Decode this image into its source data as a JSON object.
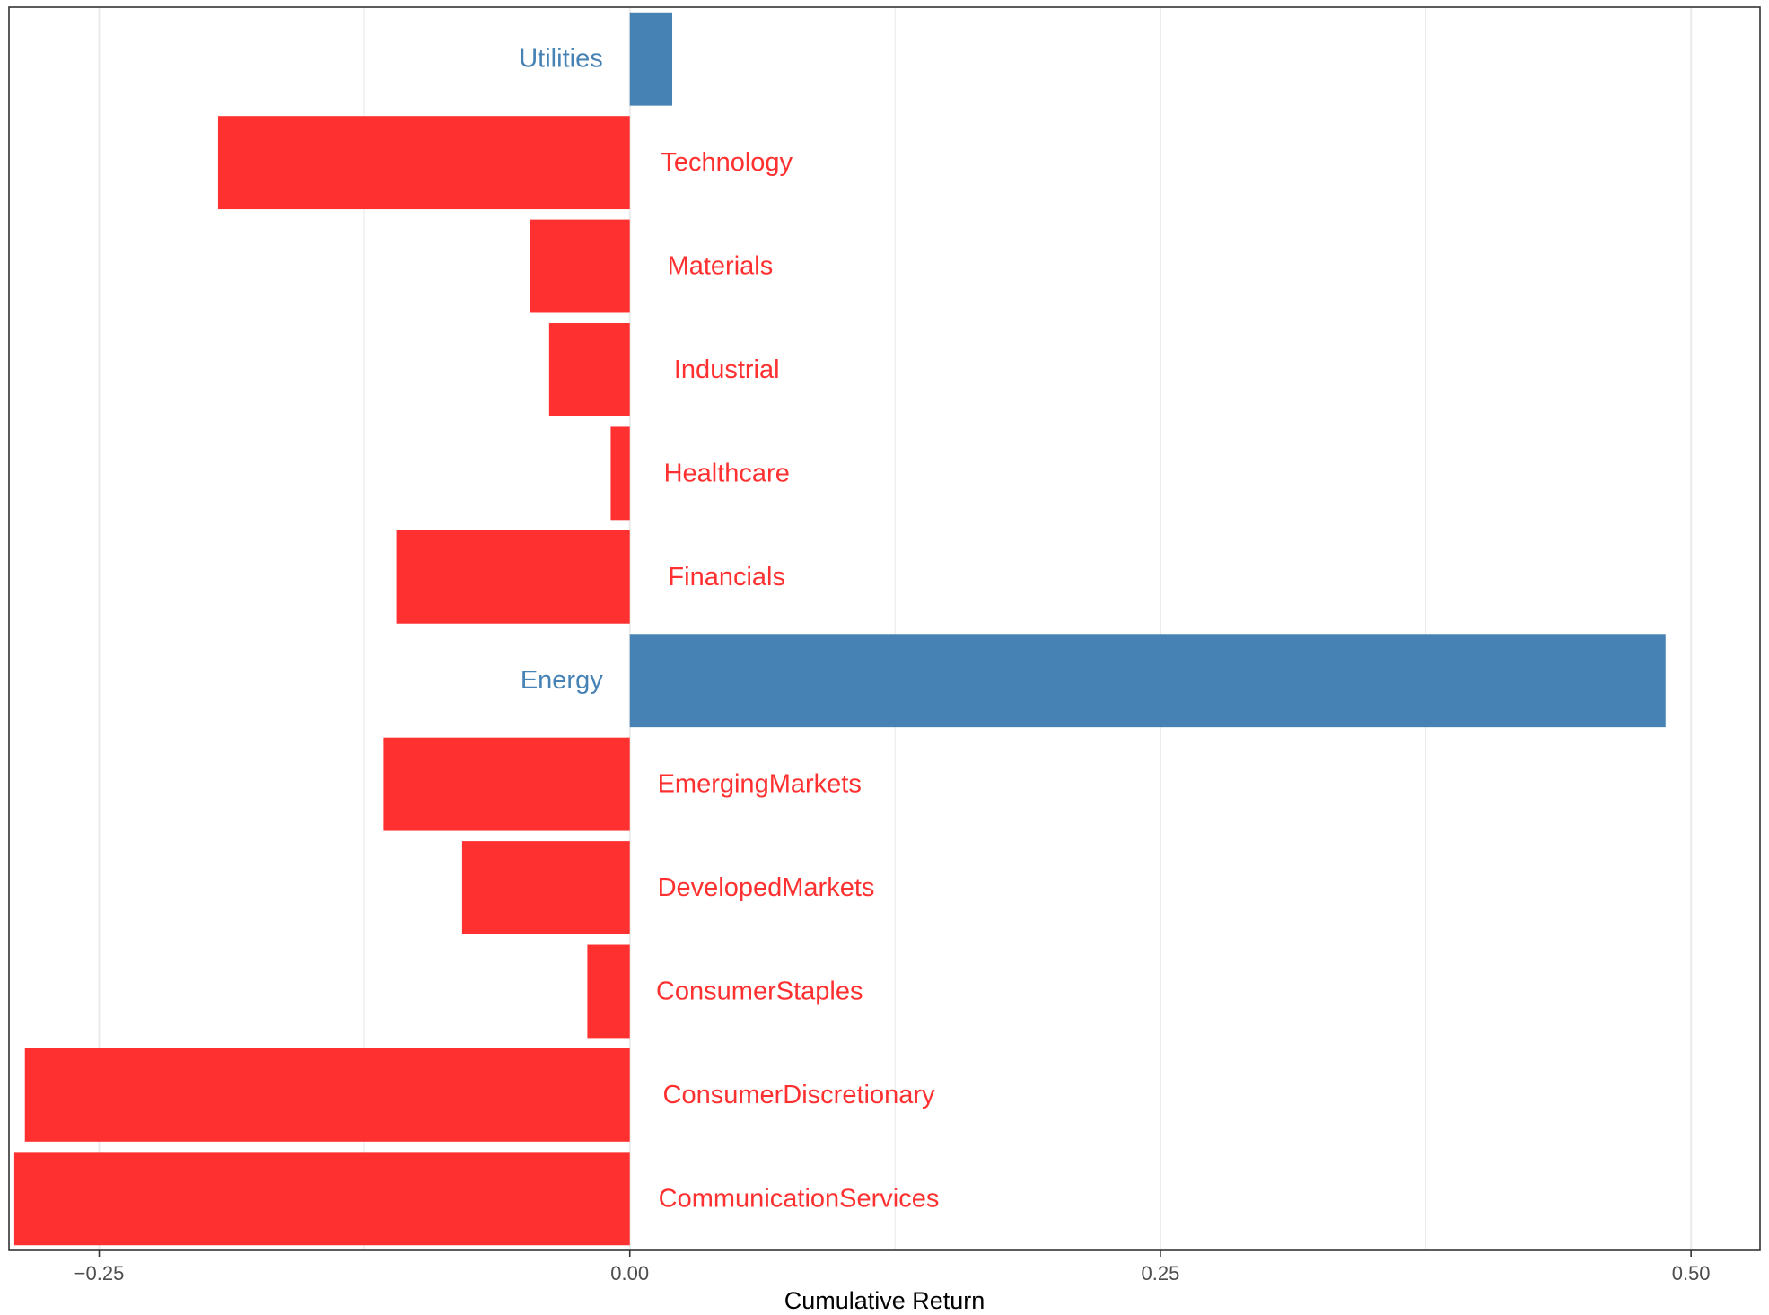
{
  "chart_data": {
    "type": "bar",
    "orientation": "horizontal",
    "xlabel": "Cumulative Return",
    "xlim": [
      -0.2925,
      0.5325
    ],
    "x_ticks": [
      -0.25,
      0.0,
      0.25,
      0.5
    ],
    "x_tick_labels": [
      "−0.25",
      "0.00",
      "0.25",
      "0.50"
    ],
    "minor_gridlines": [
      -0.125,
      0.125,
      0.375
    ],
    "grid": true,
    "legend": "none",
    "colors": {
      "positive": "#4682B4",
      "negative": "#FF3030",
      "grid": "#EBEBEB",
      "panel_border": "#333333"
    },
    "categories": [
      "Utilities",
      "Technology",
      "Materials",
      "Industrial",
      "Healthcare",
      "Financials",
      "Energy",
      "EmergingMarkets",
      "DevelopedMarkets",
      "ConsumerStaples",
      "ConsumerDiscretionary",
      "CommunicationServices"
    ],
    "values": [
      0.02,
      -0.194,
      -0.047,
      -0.038,
      -0.009,
      -0.11,
      0.488,
      -0.116,
      -0.079,
      -0.02,
      -0.285,
      -0.29
    ]
  }
}
